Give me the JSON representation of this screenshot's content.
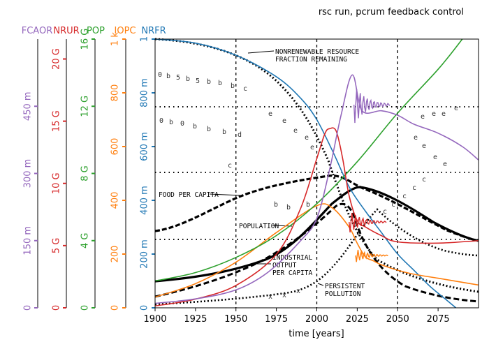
{
  "chart_data": {
    "type": "line",
    "title": "rsc run, pcrum feedback control",
    "xlabel": "time [years]",
    "xlim": [
      1900,
      2100
    ],
    "x_ticks": [
      "1900",
      "1925",
      "1950",
      "1975",
      "2000",
      "2025",
      "2050",
      "2075"
    ],
    "grid": false,
    "axes": [
      {
        "name": "FCAOR",
        "color": "#9467bd",
        "ylim": [
          0,
          0.6
        ],
        "ticks": [
          {
            "v": 0,
            "label": "0"
          },
          {
            "v": 0.15,
            "label": "150 m"
          },
          {
            "v": 0.3,
            "label": "300 m"
          },
          {
            "v": 0.45,
            "label": "450 m"
          }
        ]
      },
      {
        "name": "NRUR",
        "color": "#d62728",
        "ylim": [
          0,
          21600000000
        ],
        "ticks": [
          {
            "v": 0,
            "label": "0"
          },
          {
            "v": 5000000000,
            "label": "5 G"
          },
          {
            "v": 10000000000,
            "label": "10 G"
          },
          {
            "v": 15000000000,
            "label": "15 G"
          },
          {
            "v": 20000000000,
            "label": "20 G"
          }
        ]
      },
      {
        "name": "POP",
        "color": "#2ca02c",
        "ylim": [
          0,
          16000000000
        ],
        "ticks": [
          {
            "v": 0,
            "label": "0"
          },
          {
            "v": 4000000000,
            "label": "4 G"
          },
          {
            "v": 8000000000,
            "label": "8 G"
          },
          {
            "v": 12000000000,
            "label": "12 G"
          },
          {
            "v": 16000000000,
            "label": "16 G"
          }
        ]
      },
      {
        "name": "IOPC",
        "color": "#ff7f0e",
        "ylim": [
          0,
          1000
        ],
        "ticks": [
          {
            "v": 0,
            "label": "0"
          },
          {
            "v": 200,
            "label": "200"
          },
          {
            "v": 400,
            "label": "400"
          },
          {
            "v": 600,
            "label": "600"
          },
          {
            "v": 800,
            "label": "800"
          },
          {
            "v": 1000,
            "label": "1 k"
          }
        ]
      },
      {
        "name": "NRFR",
        "color": "#1f77b4",
        "ylim": [
          0,
          1
        ],
        "ticks": [
          {
            "v": 0,
            "label": "0"
          },
          {
            "v": 0.2,
            "label": "200 m"
          },
          {
            "v": 0.4,
            "label": "400 m"
          },
          {
            "v": 0.6,
            "label": "600 m"
          },
          {
            "v": 0.8,
            "label": "800 m"
          },
          {
            "v": 1,
            "label": "1"
          }
        ]
      }
    ],
    "series": [
      {
        "name": "NRFR",
        "color": "#1f77b4",
        "x": [
          1900,
          1925,
          1950,
          1975,
          1990,
          2000,
          2010,
          2020,
          2030,
          2040,
          2050,
          2060,
          2070,
          2080,
          2086
        ],
        "values": [
          1,
          0.985,
          0.94,
          0.86,
          0.78,
          0.7,
          0.58,
          0.45,
          0.36,
          0.28,
          0.2,
          0.14,
          0.08,
          0.03,
          0
        ]
      },
      {
        "name": "IOPC",
        "color": "#ff7f0e",
        "x": [
          1900,
          1925,
          1950,
          1975,
          2000,
          2010,
          2020,
          2025,
          2030,
          2035,
          2040,
          2050,
          2060,
          2075,
          2090,
          2100
        ],
        "values": [
          40,
          90,
          170,
          280,
          380,
          370,
          300,
          240,
          190,
          175,
          160,
          140,
          125,
          110,
          95,
          85
        ]
      },
      {
        "name": "POP",
        "color": "#2ca02c",
        "x": [
          1900,
          1925,
          1950,
          1975,
          2000,
          2025,
          2050,
          2075,
          2090
        ],
        "values": [
          1600000000,
          2100000000,
          3000000000,
          4300000000,
          6200000000,
          8700000000,
          11600000000,
          14200000000,
          16000000000
        ]
      },
      {
        "name": "NRUR",
        "color": "#d62728",
        "x": [
          1900,
          1925,
          1950,
          1975,
          1990,
          2000,
          2005,
          2008,
          2012,
          2016,
          2020,
          2025,
          2030,
          2040,
          2050,
          2075,
          2100
        ],
        "values": [
          150000000,
          700000000,
          1800000000,
          4300000000,
          8000000000,
          12000000000,
          14000000000,
          14400000000,
          14200000000,
          12000000000,
          9000000000,
          7000000000,
          6500000000,
          5800000000,
          5300000000,
          5200000000,
          5400000000
        ]
      },
      {
        "name": "FCAOR",
        "color": "#9467bd",
        "x": [
          1900,
          1925,
          1950,
          1970,
          1990,
          2000,
          2008,
          2015,
          2022,
          2028,
          2040,
          2050,
          2060,
          2075,
          2090,
          2100
        ],
        "values": [
          0.01,
          0.02,
          0.04,
          0.08,
          0.15,
          0.2,
          0.31,
          0.43,
          0.52,
          0.44,
          0.44,
          0.43,
          0.41,
          0.39,
          0.36,
          0.33
        ]
      }
    ],
    "annotations": [
      "NONRENEWABLE RESOURCE",
      "FRACTION REMAINING",
      "FOOD PER CAPITA",
      "POPULATION",
      "INDUSTRIAL",
      "OUTPUT",
      "PER CAPITA",
      "PERSISTENT",
      "POLLUTION"
    ]
  }
}
